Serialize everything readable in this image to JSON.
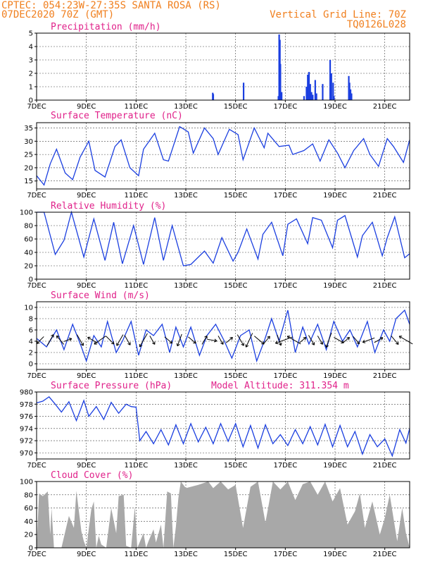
{
  "header": {
    "station": "CPTEC:  054:23W-27:35S  SANTA ROSA (RS)",
    "run": "07DEC2020 70Z (GMT)",
    "grid_note": "Vertical Grid Line: 70Z",
    "code": "TQ0126L028"
  },
  "colors": {
    "line": "#1b3fe0",
    "header": "#f07f1e",
    "title": "#e0218a",
    "cloud": "#a8a8a8",
    "arrow": "#000000"
  },
  "x_ticks": [
    "7DEC",
    "9DEC",
    "11DEC",
    "13DEC",
    "15DEC",
    "17DEC",
    "19DEC",
    "21DEC"
  ],
  "chart_data": [
    {
      "id": "precip",
      "type": "bar",
      "title": "Precipitation (mm/h)",
      "x_range_days": [
        7,
        22
      ],
      "ylim": [
        0,
        5
      ],
      "yticks": [
        0,
        1,
        2,
        3,
        4,
        5
      ],
      "bars": [
        {
          "x": 14.08,
          "y": 0.55
        },
        {
          "x": 14.1,
          "y": 0.45
        },
        {
          "x": 15.32,
          "y": 1.3
        },
        {
          "x": 16.72,
          "y": 0.3
        },
        {
          "x": 16.75,
          "y": 4.9
        },
        {
          "x": 16.78,
          "y": 4.5
        },
        {
          "x": 16.8,
          "y": 2.7
        },
        {
          "x": 16.85,
          "y": 0.6
        },
        {
          "x": 17.75,
          "y": 0.3
        },
        {
          "x": 17.85,
          "y": 1.0
        },
        {
          "x": 17.9,
          "y": 1.9
        },
        {
          "x": 17.95,
          "y": 2.1
        },
        {
          "x": 18.0,
          "y": 1.2
        },
        {
          "x": 18.05,
          "y": 0.6
        },
        {
          "x": 18.1,
          "y": 0.4
        },
        {
          "x": 18.2,
          "y": 1.5
        },
        {
          "x": 18.25,
          "y": 0.5
        },
        {
          "x": 18.5,
          "y": 1.2
        },
        {
          "x": 18.8,
          "y": 3.0
        },
        {
          "x": 18.85,
          "y": 2.0
        },
        {
          "x": 18.92,
          "y": 1.3
        },
        {
          "x": 18.95,
          "y": 0.3
        },
        {
          "x": 19.55,
          "y": 1.8
        },
        {
          "x": 19.58,
          "y": 1.3
        },
        {
          "x": 19.62,
          "y": 0.8
        },
        {
          "x": 19.66,
          "y": 0.5
        }
      ]
    },
    {
      "id": "temp",
      "type": "line",
      "title": "Surface Temperature (nC)",
      "x_range_days": [
        7,
        22
      ],
      "ylim": [
        12,
        37
      ],
      "yticks": [
        15,
        20,
        25,
        30,
        35
      ],
      "x": [
        7.0,
        7.3,
        7.55,
        7.8,
        8.15,
        8.45,
        8.75,
        9.1,
        9.35,
        9.75,
        10.15,
        10.4,
        10.75,
        11.1,
        11.3,
        11.75,
        12.1,
        12.3,
        12.75,
        13.1,
        13.3,
        13.75,
        14.1,
        14.3,
        14.75,
        15.1,
        15.3,
        15.75,
        16.15,
        16.3,
        16.75,
        17.15,
        17.3,
        17.75,
        18.1,
        18.4,
        18.75,
        19.1,
        19.4,
        19.75,
        20.15,
        20.4,
        20.75,
        21.1,
        21.35,
        21.75,
        22.0
      ],
      "y": [
        17,
        13.5,
        21.5,
        27,
        18,
        15.5,
        24,
        30,
        19,
        16.5,
        28,
        30.5,
        20,
        17,
        27,
        33,
        23,
        22.5,
        35.5,
        33.5,
        25.5,
        35,
        31,
        25,
        34.5,
        32.5,
        23,
        35,
        27.5,
        33,
        28,
        28.5,
        25,
        26.5,
        29,
        22.5,
        30.5,
        25.5,
        20,
        26.5,
        31,
        25,
        20.5,
        31,
        28,
        22,
        30.5
      ]
    },
    {
      "id": "rh",
      "type": "line",
      "title": "Relative Humidity (%)",
      "x_range_days": [
        7,
        22
      ],
      "ylim": [
        0,
        100
      ],
      "yticks": [
        0,
        20,
        40,
        60,
        80,
        100
      ],
      "x": [
        7.0,
        7.3,
        7.75,
        8.1,
        8.4,
        8.9,
        9.3,
        9.75,
        10.1,
        10.45,
        10.9,
        11.3,
        11.75,
        12.1,
        12.45,
        12.9,
        13.2,
        13.75,
        14.1,
        14.45,
        14.9,
        15.1,
        15.45,
        15.9,
        16.1,
        16.45,
        16.9,
        17.1,
        17.45,
        17.9,
        18.1,
        18.45,
        18.9,
        19.1,
        19.4,
        19.9,
        20.1,
        20.5,
        20.9,
        21.1,
        21.4,
        21.8,
        22.0
      ],
      "y": [
        100,
        100,
        37,
        58,
        100,
        33,
        90,
        28,
        85,
        23,
        80,
        22,
        92,
        28,
        80,
        20,
        22,
        42,
        24,
        62,
        27,
        40,
        75,
        30,
        67,
        85,
        35,
        82,
        90,
        53,
        92,
        88,
        47,
        88,
        95,
        33,
        65,
        85,
        35,
        62,
        93,
        32,
        38
      ]
    },
    {
      "id": "wind",
      "type": "line",
      "title": "Surface Wind (m/s)",
      "x_range_days": [
        7,
        22
      ],
      "ylim": [
        -1,
        11
      ],
      "yticks": [
        0,
        2,
        4,
        6,
        8,
        10
      ],
      "x": [
        7.0,
        7.4,
        7.8,
        8.1,
        8.45,
        8.8,
        9.0,
        9.3,
        9.6,
        9.85,
        10.2,
        10.45,
        10.8,
        11.1,
        11.4,
        11.7,
        12.05,
        12.35,
        12.6,
        12.9,
        13.2,
        13.55,
        13.85,
        14.2,
        14.55,
        14.85,
        15.2,
        15.55,
        15.85,
        16.15,
        16.45,
        16.75,
        17.1,
        17.4,
        17.7,
        17.95,
        18.3,
        18.65,
        18.95,
        19.3,
        19.6,
        19.9,
        20.3,
        20.6,
        20.95,
        21.2,
        21.45,
        21.8,
        22.0
      ],
      "y": [
        4.5,
        3,
        6,
        2.5,
        7,
        3,
        0.5,
        5,
        3,
        7.5,
        2,
        4,
        7.5,
        1.5,
        6,
        5,
        7,
        2,
        6.5,
        3,
        6.5,
        1.5,
        5,
        7,
        4,
        1,
        5,
        6,
        0.5,
        4,
        8,
        4,
        9.5,
        2,
        6.5,
        3.5,
        7,
        2.5,
        7.5,
        4,
        6,
        3,
        7.5,
        2,
        6,
        4,
        8,
        9.5,
        7
      ]
    },
    {
      "id": "pressure",
      "type": "line",
      "title": "Surface Pressure (hPa)",
      "annotation": "Model Altitude: 311.354 m",
      "x_range_days": [
        7,
        22
      ],
      "ylim": [
        969,
        980
      ],
      "yticks": [
        970,
        972,
        974,
        976,
        978,
        980
      ],
      "x": [
        7.0,
        7.25,
        7.5,
        7.75,
        8.0,
        8.3,
        8.6,
        8.9,
        9.1,
        9.4,
        9.7,
        10.0,
        10.3,
        10.6,
        10.8,
        11.0,
        11.15,
        11.4,
        11.7,
        12.0,
        12.3,
        12.6,
        12.9,
        13.2,
        13.5,
        13.8,
        14.1,
        14.4,
        14.7,
        15.0,
        15.3,
        15.6,
        15.9,
        16.2,
        16.5,
        16.8,
        17.1,
        17.4,
        17.7,
        18.0,
        18.3,
        18.6,
        18.9,
        19.2,
        19.5,
        19.8,
        20.1,
        20.4,
        20.7,
        21.0,
        21.3,
        21.6,
        21.85,
        22.0
      ],
      "y": [
        978.2,
        978.5,
        979.2,
        978,
        976.7,
        978.4,
        975.3,
        978.6,
        976,
        977.6,
        975.5,
        978.3,
        976.5,
        978,
        977.6,
        977.5,
        972,
        973.5,
        971.5,
        973.8,
        971.3,
        974.6,
        971.5,
        974.8,
        971.8,
        974.2,
        971.5,
        974.8,
        971.9,
        974.8,
        971,
        974.5,
        970.8,
        974.6,
        971.5,
        973,
        971.2,
        973.8,
        971.5,
        974.3,
        971.3,
        974.7,
        971,
        974.5,
        971,
        973.5,
        969.8,
        973,
        971,
        972.3,
        969.5,
        973.8,
        971.6,
        974
      ]
    },
    {
      "id": "cloud",
      "type": "area",
      "title": "Cloud Cover (%)",
      "x_range_days": [
        7,
        22
      ],
      "ylim": [
        0,
        100
      ],
      "yticks": [
        0,
        20,
        40,
        60,
        80,
        100
      ],
      "x": [
        7.0,
        7.1,
        7.25,
        7.45,
        7.55,
        7.6,
        7.7,
        8.0,
        8.3,
        8.5,
        8.6,
        8.8,
        8.9,
        9.0,
        9.2,
        9.3,
        9.4,
        9.5,
        9.6,
        9.8,
        10.0,
        10.2,
        10.3,
        10.5,
        10.6,
        10.8,
        10.95,
        11.05,
        11.3,
        11.4,
        11.5,
        11.7,
        11.8,
        12.0,
        12.1,
        12.25,
        12.4,
        12.5,
        12.6,
        12.7,
        12.8,
        12.9,
        13.0,
        13.5,
        13.9,
        14.1,
        14.4,
        14.7,
        15.0,
        15.3,
        15.6,
        15.9,
        16.2,
        16.5,
        16.8,
        17.1,
        17.4,
        17.7,
        18.0,
        18.3,
        18.6,
        18.9,
        19.2,
        19.5,
        19.8,
        20.0,
        20.2,
        20.5,
        20.8,
        21.0,
        21.2,
        21.5,
        21.7,
        21.85,
        22.0
      ],
      "y": [
        0,
        82,
        78,
        85,
        20,
        60,
        0,
        0,
        48,
        30,
        86,
        25,
        10,
        0,
        58,
        70,
        0,
        18,
        5,
        0,
        60,
        22,
        78,
        80,
        3,
        0,
        62,
        0,
        22,
        0,
        10,
        28,
        8,
        35,
        0,
        85,
        82,
        0,
        32,
        75,
        100,
        95,
        90,
        95,
        100,
        90,
        100,
        88,
        95,
        30,
        92,
        100,
        38,
        100,
        88,
        100,
        72,
        96,
        100,
        80,
        100,
        70,
        90,
        35,
        55,
        82,
        30,
        70,
        20,
        45,
        80,
        10,
        60,
        22,
        0
      ]
    }
  ],
  "wind_barbs": [
    {
      "t": 7.15,
      "dir_deg": 225,
      "len": 14
    },
    {
      "t": 7.55,
      "dir_deg": 60,
      "len": 18
    },
    {
      "t": 7.95,
      "dir_deg": 130,
      "len": 16
    },
    {
      "t": 8.25,
      "dir_deg": 20,
      "len": 12
    },
    {
      "t": 8.75,
      "dir_deg": 300,
      "len": 18
    },
    {
      "t": 9.25,
      "dir_deg": 150,
      "len": 16
    },
    {
      "t": 9.55,
      "dir_deg": 215,
      "len": 20
    },
    {
      "t": 9.95,
      "dir_deg": 315,
      "len": 16
    },
    {
      "t": 10.35,
      "dir_deg": 240,
      "len": 18
    },
    {
      "t": 10.65,
      "dir_deg": 300,
      "len": 16
    },
    {
      "t": 11.3,
      "dir_deg": 240,
      "len": 22
    },
    {
      "t": 11.65,
      "dir_deg": 300,
      "len": 14
    },
    {
      "t": 12.3,
      "dir_deg": 320,
      "len": 14
    },
    {
      "t": 12.75,
      "dir_deg": 250,
      "len": 18
    },
    {
      "t": 13.25,
      "dir_deg": 320,
      "len": 14
    },
    {
      "t": 13.75,
      "dir_deg": 60,
      "len": 14
    },
    {
      "t": 14.05,
      "dir_deg": 350,
      "len": 14
    },
    {
      "t": 14.4,
      "dir_deg": 300,
      "len": 14
    },
    {
      "t": 14.75,
      "dir_deg": 40,
      "len": 12
    },
    {
      "t": 15.2,
      "dir_deg": 300,
      "len": 18
    },
    {
      "t": 15.55,
      "dir_deg": 245,
      "len": 22
    },
    {
      "t": 15.95,
      "dir_deg": 320,
      "len": 18
    },
    {
      "t": 16.25,
      "dir_deg": 50,
      "len": 14
    },
    {
      "t": 16.75,
      "dir_deg": 290,
      "len": 16
    },
    {
      "t": 16.95,
      "dir_deg": 200,
      "len": 26
    },
    {
      "t": 17.35,
      "dir_deg": 150,
      "len": 22
    },
    {
      "t": 17.7,
      "dir_deg": 40,
      "len": 12
    },
    {
      "t": 18.05,
      "dir_deg": 300,
      "len": 16
    },
    {
      "t": 18.4,
      "dir_deg": 300,
      "len": 14
    },
    {
      "t": 18.75,
      "dir_deg": 250,
      "len": 22
    },
    {
      "t": 19.15,
      "dir_deg": 330,
      "len": 16
    },
    {
      "t": 19.45,
      "dir_deg": 40,
      "len": 12
    },
    {
      "t": 19.85,
      "dir_deg": 310,
      "len": 14
    },
    {
      "t": 20.35,
      "dir_deg": 200,
      "len": 18
    },
    {
      "t": 20.75,
      "dir_deg": 30,
      "len": 14
    },
    {
      "t": 21.4,
      "dir_deg": 310,
      "len": 16
    },
    {
      "t": 21.85,
      "dir_deg": 150,
      "len": 22
    }
  ]
}
